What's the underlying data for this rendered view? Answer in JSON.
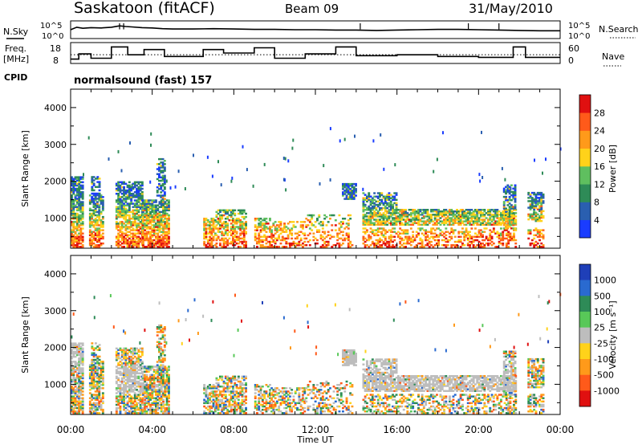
{
  "header": {
    "station": "Saskatoon (fitACF)",
    "beam": "Beam 09",
    "date": "31/May/2010"
  },
  "left_labels": {
    "nsky": "N.Sky",
    "freq_line1": "Freq.",
    "freq_line2": "[MHz]",
    "cpid": "CPID"
  },
  "right_labels": {
    "nsearch": "N.Search",
    "nave": "Nave"
  },
  "cpid_text": "normalsound (fast) 157",
  "colors": {
    "power": [
      "#1a3cff",
      "#2a5fb0",
      "#2e8b57",
      "#5fbf5f",
      "#ffd21a",
      "#ff9a1a",
      "#ff5a1a",
      "#e01010"
    ],
    "velocity": [
      "#1f3fb8",
      "#2a6ad0",
      "#2e8b57",
      "#58c858",
      "#bdbdbd",
      "#ffd21a",
      "#ff9a1a",
      "#ff5a1a",
      "#e01010"
    ]
  },
  "chart_data": [
    {
      "type": "line",
      "panel": "noise",
      "series": [
        {
          "name": "N.Sky",
          "x_hours": [
            0,
            0.3,
            0.6,
            1.0,
            1.5,
            2.0,
            2.4,
            2.7,
            3.0,
            3.5,
            4.0,
            4.5,
            5.0,
            6.0,
            7.0,
            8.0,
            9.0,
            10.0,
            11.0,
            12.0,
            13.0,
            14.0,
            15.0,
            16.0,
            17.0,
            18.0,
            19.0,
            20.0,
            21.0,
            22.0,
            23.0,
            24.0
          ],
          "values": [
            2.5,
            3.2,
            2.9,
            3.1,
            3.0,
            3.2,
            3.6,
            3.4,
            3.3,
            3.1,
            3.0,
            2.8,
            2.7,
            2.7,
            2.8,
            2.7,
            2.6,
            2.6,
            2.5,
            2.5,
            2.4,
            2.4,
            2.3,
            2.4,
            2.5,
            2.6,
            2.6,
            2.5,
            2.4,
            2.3,
            2.2,
            2.2
          ]
        }
      ],
      "y_ticks": [
        "10^5",
        "10^0"
      ]
    },
    {
      "type": "line",
      "panel": "frequency",
      "series": [
        {
          "name": "Freq",
          "x_hours": [
            0,
            0.4,
            0.4,
            1.0,
            1.0,
            2.0,
            2.0,
            2.8,
            2.8,
            3.6,
            3.6,
            4.6,
            4.6,
            6.5,
            6.5,
            7.5,
            7.5,
            9.0,
            9.0,
            10.0,
            10.0,
            11.5,
            11.5,
            13.0,
            13.0,
            14.0,
            14.0,
            16.0,
            16.0,
            18.0,
            18.0,
            20.0,
            20.0,
            21.7,
            21.7,
            22.3,
            22.3,
            24.0
          ],
          "values": [
            9.5,
            9.5,
            12.5,
            12.5,
            10,
            10,
            16.5,
            16.5,
            12,
            12,
            15,
            15,
            11,
            11,
            15,
            15,
            13,
            13,
            16,
            16,
            10,
            10,
            12.5,
            12.5,
            16.5,
            16.5,
            11.5,
            11.5,
            12,
            12,
            11,
            11,
            10.5,
            10.5,
            16.5,
            16.5,
            10.5,
            10.5
          ]
        },
        {
          "name": "Nave",
          "x_hours": [
            0,
            24
          ],
          "values": [
            12,
            12
          ]
        }
      ],
      "y_ticks": [
        18,
        8
      ],
      "y2_ticks": [
        60,
        0
      ]
    },
    {
      "type": "heatmap",
      "panel": "power",
      "xlabel": "",
      "ylabel": "Slant Range [km]",
      "x_ticks": [
        "00:00",
        "04:00",
        "08:00",
        "12:00",
        "16:00",
        "20:00",
        "00:00"
      ],
      "y_ticks": [
        1000,
        2000,
        3000,
        4000
      ],
      "xlim_hours": [
        0,
        24
      ],
      "ylim_km": [
        180,
        4500
      ],
      "colorbar_label": "Power [dB]",
      "colorbar_ticks": [
        4,
        8,
        12,
        16,
        20,
        24,
        28
      ]
    },
    {
      "type": "heatmap",
      "panel": "velocity",
      "xlabel": "Time UT",
      "ylabel": "Slant Range [km]",
      "x_ticks": [
        "00:00",
        "04:00",
        "08:00",
        "12:00",
        "16:00",
        "20:00",
        "00:00"
      ],
      "y_ticks": [
        1000,
        2000,
        3000,
        4000
      ],
      "xlim_hours": [
        0,
        24
      ],
      "ylim_km": [
        180,
        4500
      ],
      "colorbar_label": "Velocity [m s⁻¹]",
      "colorbar_ticks": [
        1000,
        500,
        100,
        25,
        -25,
        -100,
        -500,
        -1000
      ]
    }
  ],
  "scatter_regions": [
    {
      "t0": 0.0,
      "t1": 0.6,
      "r0": 200,
      "r1": 2100,
      "density": 0.8
    },
    {
      "t0": 0.9,
      "t1": 1.6,
      "r0": 200,
      "r1": 1600,
      "density": 0.7
    },
    {
      "t0": 1.0,
      "t1": 1.4,
      "r0": 1600,
      "r1": 2100,
      "density": 0.5
    },
    {
      "t0": 2.2,
      "t1": 3.5,
      "r0": 200,
      "r1": 2000,
      "density": 0.7
    },
    {
      "t0": 3.5,
      "t1": 4.8,
      "r0": 200,
      "r1": 1500,
      "density": 0.8
    },
    {
      "t0": 4.2,
      "t1": 4.6,
      "r0": 1500,
      "r1": 2600,
      "density": 0.5
    },
    {
      "t0": 6.5,
      "t1": 7.1,
      "r0": 200,
      "r1": 1000,
      "density": 0.6
    },
    {
      "t0": 7.1,
      "t1": 8.6,
      "r0": 200,
      "r1": 1200,
      "density": 0.6
    },
    {
      "t0": 9.0,
      "t1": 9.8,
      "r0": 200,
      "r1": 1000,
      "density": 0.55
    },
    {
      "t0": 9.8,
      "t1": 11.5,
      "r0": 200,
      "r1": 900,
      "density": 0.45
    },
    {
      "t0": 11.5,
      "t1": 13.8,
      "r0": 200,
      "r1": 1100,
      "density": 0.3
    },
    {
      "t0": 13.3,
      "t1": 14.0,
      "r0": 1500,
      "r1": 1950,
      "density": 0.8
    },
    {
      "t0": 14.3,
      "t1": 21.8,
      "r0": 800,
      "r1": 1250,
      "density": 0.75
    },
    {
      "t0": 14.3,
      "t1": 16.0,
      "r0": 1250,
      "r1": 1700,
      "density": 0.55
    },
    {
      "t0": 14.3,
      "t1": 21.8,
      "r0": 200,
      "r1": 700,
      "density": 0.45
    },
    {
      "t0": 21.2,
      "t1": 21.8,
      "r0": 700,
      "r1": 1900,
      "density": 0.6
    },
    {
      "t0": 22.4,
      "t1": 23.2,
      "r0": 900,
      "r1": 1700,
      "density": 0.7
    },
    {
      "t0": 22.4,
      "t1": 23.2,
      "r0": 200,
      "r1": 700,
      "density": 0.45
    }
  ],
  "ground_scatter_regions": [
    {
      "t0": 13.3,
      "t1": 14.0,
      "r0": 1500,
      "r1": 1950
    },
    {
      "t0": 14.3,
      "t1": 21.8,
      "r0": 800,
      "r1": 1700
    },
    {
      "t0": 0.0,
      "t1": 0.6,
      "r0": 1300,
      "r1": 2100
    },
    {
      "t0": 2.2,
      "t1": 3.5,
      "r0": 700,
      "r1": 1500
    }
  ]
}
